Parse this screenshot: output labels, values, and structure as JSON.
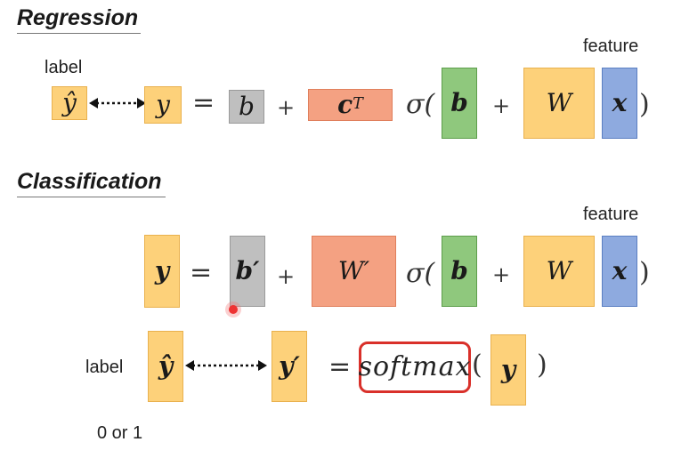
{
  "regression": {
    "heading": "Regression",
    "label_text": "label",
    "feature_text": "feature",
    "y_hat": "ŷ",
    "y": "y",
    "equals": "=",
    "b": "b",
    "plus1": "+",
    "c": "c",
    "c_sup": "T",
    "sigma_open": "σ(",
    "b_inner": "b",
    "plus2": "+",
    "W": "W",
    "x": "x",
    "close_paren": ")"
  },
  "classification": {
    "heading": "Classification",
    "feature_text": "feature",
    "y": "y",
    "equals": "=",
    "b_prime": "b′",
    "plus1": "+",
    "W_prime": "W′",
    "sigma_open": "σ(",
    "b_inner": "b",
    "plus2": "+",
    "W": "W",
    "x": "x",
    "close_paren": ")",
    "label_text": "label",
    "y_hat": "ŷ",
    "y_prime": "y′",
    "equals2": "=",
    "softmax": "softmax",
    "softmax_open": "(",
    "y_arg": "y",
    "softmax_close": ")",
    "label_values": "0 or 1"
  },
  "colors": {
    "yellow": "#fdd17a",
    "gray": "#bfbfbf",
    "orange": "#f4a182",
    "green": "#8fc87d",
    "blue": "#8eaadf",
    "softmax_border": "#d9302a",
    "cursor_dot": "#e33333"
  }
}
